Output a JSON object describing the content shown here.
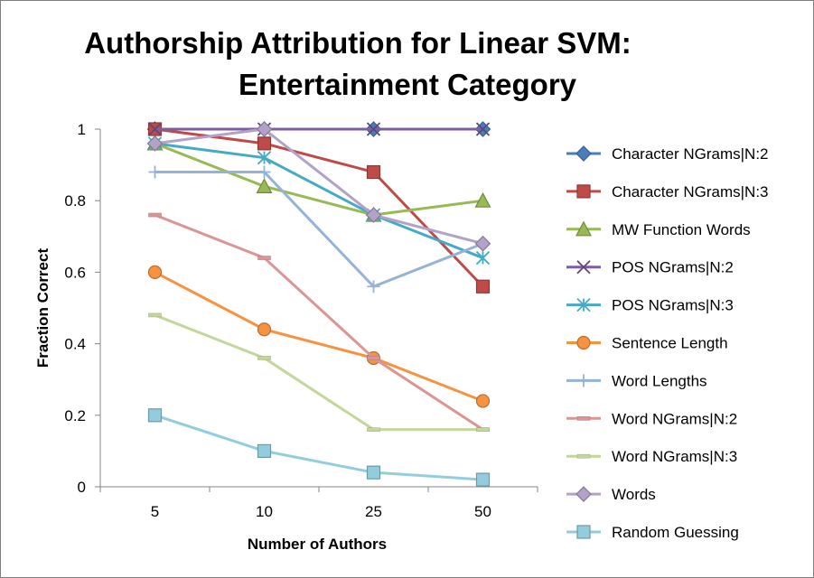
{
  "chart_data": {
    "type": "line",
    "title_lines": [
      "Authorship Attribution for Linear SVM:",
      "Entertainment Category"
    ],
    "xlabel": "Number of Authors",
    "ylabel": "Fraction Correct",
    "categories": [
      "5",
      "10",
      "25",
      "50"
    ],
    "ylim": [
      0,
      1
    ],
    "yticks": [
      "0",
      "0.2",
      "0.4",
      "0.6",
      "0.8",
      "1"
    ],
    "grid": false,
    "legend_position": "right",
    "series": [
      {
        "name": "Character NGrams|N:2",
        "color": "#4a7ebb",
        "marker": "diamond",
        "values": [
          1.0,
          1.0,
          1.0,
          1.0
        ]
      },
      {
        "name": "Character NGrams|N:3",
        "color": "#be4b48",
        "marker": "square",
        "values": [
          1.0,
          0.96,
          0.88,
          0.56
        ]
      },
      {
        "name": "MW Function Words",
        "color": "#98b954",
        "marker": "triangle",
        "values": [
          0.96,
          0.84,
          0.76,
          0.8
        ]
      },
      {
        "name": "POS NGrams|N:2",
        "color": "#7d5fa0",
        "marker": "x",
        "values": [
          1.0,
          1.0,
          1.0,
          1.0
        ]
      },
      {
        "name": "POS NGrams|N:3",
        "color": "#46aac5",
        "marker": "star",
        "values": [
          0.96,
          0.92,
          0.76,
          0.64
        ]
      },
      {
        "name": "Sentence Length",
        "color": "#f69240",
        "marker": "circle",
        "values": [
          0.6,
          0.44,
          0.36,
          0.24
        ]
      },
      {
        "name": "Word Lengths",
        "color": "#95b3d7",
        "marker": "plus",
        "values": [
          0.88,
          0.88,
          0.56,
          0.68
        ]
      },
      {
        "name": "Word NGrams|N:2",
        "color": "#d99694",
        "marker": "dash",
        "values": [
          0.76,
          0.64,
          0.36,
          0.16
        ]
      },
      {
        "name": "Word NGrams|N:3",
        "color": "#c3d69b",
        "marker": "dash",
        "values": [
          0.48,
          0.36,
          0.16,
          0.16
        ]
      },
      {
        "name": "Words",
        "color": "#b3a2c7",
        "marker": "diamond",
        "values": [
          0.96,
          1.0,
          0.76,
          0.68
        ]
      },
      {
        "name": "Random Guessing",
        "color": "#93cddd",
        "marker": "square",
        "values": [
          0.2,
          0.1,
          0.04,
          0.02
        ]
      }
    ]
  }
}
